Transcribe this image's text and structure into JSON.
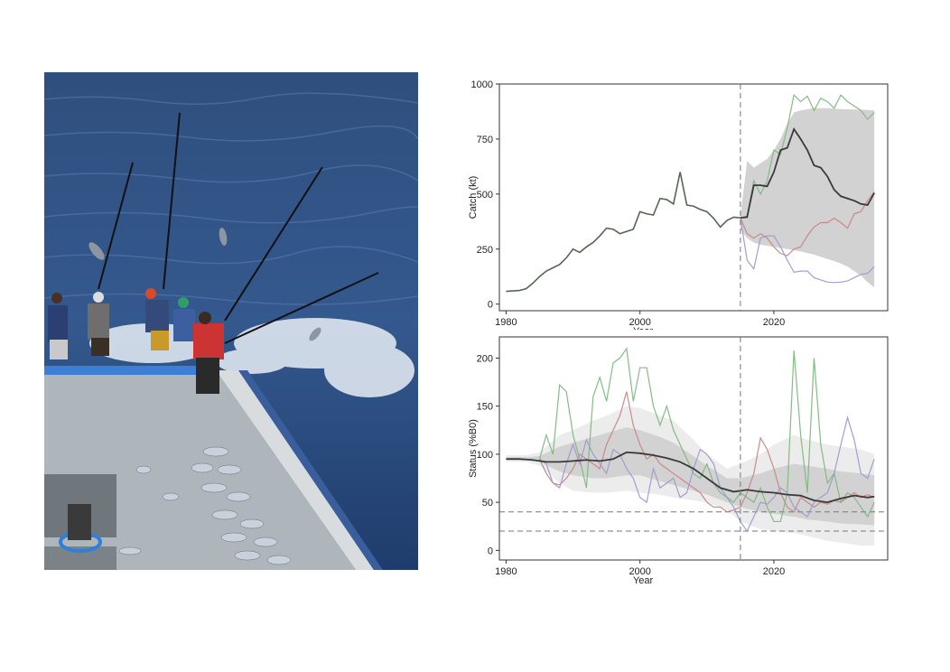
{
  "photo": {
    "description_icon": "pole-and-line-fishing-photo-icon"
  },
  "colors": {
    "median": "#3a3a3a",
    "green": "#7fb77f",
    "red": "#c98585",
    "blue": "#9b9bd0",
    "ribbon_outer": "#ececec",
    "ribbon_inner": "#d2d2d2",
    "vline": "#777777"
  },
  "chart_data": [
    {
      "type": "line",
      "xlabel": "Year",
      "ylabel": "Catch (kt)",
      "xlim": [
        1979,
        2037
      ],
      "ylim": [
        -30,
        1000
      ],
      "xticks": [
        1980,
        2000,
        2020
      ],
      "yticks": [
        0,
        250,
        500,
        750,
        1000
      ],
      "xtick_labels": [
        "1980",
        "2000",
        "2020"
      ],
      "ytick_labels": [
        "0",
        "250",
        "500",
        "750",
        "1000"
      ],
      "projection_start": 2015,
      "historical": {
        "x": [
          1980,
          1981,
          1982,
          1983,
          1984,
          1985,
          1986,
          1987,
          1988,
          1989,
          1990,
          1991,
          1992,
          1993,
          1994,
          1995,
          1996,
          1997,
          1998,
          1999,
          2000,
          2001,
          2002,
          2003,
          2004,
          2005,
          2006,
          2007,
          2008,
          2009,
          2010,
          2011,
          2012,
          2013,
          2014,
          2015
        ],
        "y": [
          58,
          60,
          62,
          70,
          95,
          125,
          150,
          165,
          180,
          210,
          250,
          235,
          260,
          280,
          310,
          345,
          340,
          320,
          330,
          340,
          420,
          410,
          405,
          480,
          475,
          455,
          600,
          450,
          445,
          430,
          420,
          390,
          350,
          380,
          395,
          392
        ]
      },
      "ribbon": {
        "x": [
          2015,
          2016,
          2017,
          2018,
          2019,
          2020,
          2021,
          2022,
          2023,
          2024,
          2025,
          2026,
          2027,
          2028,
          2029,
          2030,
          2031,
          2032,
          2033,
          2034,
          2035
        ],
        "lower": [
          340,
          300,
          280,
          270,
          265,
          260,
          255,
          250,
          245,
          240,
          232,
          225,
          215,
          205,
          195,
          185,
          170,
          150,
          130,
          100,
          75
        ],
        "upper": [
          400,
          650,
          620,
          640,
          660,
          700,
          750,
          820,
          870,
          880,
          885,
          890,
          890,
          890,
          888,
          886,
          885,
          884,
          883,
          882,
          880
        ]
      },
      "series": [
        {
          "name": "",
          "color_key": "median",
          "x": [
            2015,
            2016,
            2017,
            2018,
            2019,
            2020,
            2021,
            2022,
            2023,
            2024,
            2025,
            2026,
            2027,
            2028,
            2029,
            2030,
            2031,
            2032,
            2033,
            2034,
            2035
          ],
          "y": [
            392,
            395,
            540,
            540,
            535,
            600,
            700,
            710,
            795,
            750,
            700,
            630,
            620,
            580,
            520,
            490,
            480,
            470,
            455,
            450,
            505
          ]
        },
        {
          "name": "",
          "color_key": "green",
          "x": [
            2015,
            2016,
            2017,
            2018,
            2019,
            2020,
            2021,
            2022,
            2023,
            2024,
            2025,
            2026,
            2027,
            2028,
            2029,
            2030,
            2031,
            2032,
            2033,
            2034,
            2035
          ],
          "y": [
            392,
            400,
            560,
            500,
            560,
            700,
            680,
            800,
            950,
            920,
            945,
            880,
            935,
            920,
            890,
            950,
            920,
            900,
            880,
            840,
            870
          ]
        },
        {
          "name": "",
          "color_key": "red",
          "x": [
            2015,
            2016,
            2017,
            2018,
            2019,
            2020,
            2021,
            2022,
            2023,
            2024,
            2025,
            2026,
            2027,
            2028,
            2029,
            2030,
            2031,
            2032,
            2033,
            2034,
            2035
          ],
          "y": [
            392,
            320,
            300,
            320,
            300,
            260,
            230,
            220,
            250,
            260,
            310,
            350,
            370,
            370,
            390,
            370,
            345,
            410,
            420,
            470,
            510
          ]
        },
        {
          "name": "",
          "color_key": "blue",
          "x": [
            2015,
            2016,
            2017,
            2018,
            2019,
            2020,
            2021,
            2022,
            2023,
            2024,
            2025,
            2026,
            2027,
            2028,
            2029,
            2030,
            2031,
            2032,
            2033,
            2034,
            2035
          ],
          "y": [
            392,
            200,
            160,
            300,
            310,
            310,
            260,
            200,
            145,
            150,
            150,
            120,
            110,
            100,
            98,
            100,
            105,
            120,
            135,
            140,
            170
          ]
        }
      ]
    },
    {
      "type": "line",
      "xlabel": "Year",
      "ylabel": "Status (%B0)",
      "xlim": [
        1979,
        2037
      ],
      "ylim": [
        -10,
        222
      ],
      "xticks": [
        1980,
        2000,
        2020
      ],
      "yticks": [
        0,
        50,
        100,
        150,
        200
      ],
      "xtick_labels": [
        "1980",
        "2000",
        "2020"
      ],
      "ytick_labels": [
        "0",
        "50",
        "100",
        "150",
        "200"
      ],
      "projection_start": 2015,
      "hlines": [
        40,
        20
      ],
      "ribbon_outer": {
        "x": [
          1980,
          1983,
          1985,
          1988,
          1990,
          1993,
          1995,
          1998,
          2000,
          2003,
          2005,
          2008,
          2010,
          2013,
          2015,
          2018,
          2020,
          2023,
          2025,
          2028,
          2030,
          2033,
          2035
        ],
        "lower": [
          92,
          92,
          88,
          70,
          62,
          60,
          60,
          62,
          60,
          58,
          55,
          52,
          50,
          42,
          30,
          22,
          20,
          18,
          15,
          10,
          8,
          5,
          5
        ],
        "upper": [
          99,
          99,
          102,
          120,
          125,
          135,
          140,
          150,
          148,
          140,
          135,
          115,
          100,
          85,
          90,
          100,
          110,
          120,
          115,
          110,
          108,
          105,
          100
        ]
      },
      "ribbon_inner": {
        "x": [
          1980,
          1983,
          1985,
          1988,
          1990,
          1993,
          1995,
          1998,
          2000,
          2003,
          2005,
          2008,
          2010,
          2013,
          2015,
          2018,
          2020,
          2023,
          2025,
          2028,
          2030,
          2033,
          2035
        ],
        "lower": [
          94,
          94,
          92,
          82,
          78,
          75,
          75,
          78,
          78,
          72,
          68,
          62,
          58,
          50,
          45,
          40,
          38,
          35,
          32,
          30,
          28,
          27,
          26
        ],
        "upper": [
          97,
          97,
          98,
          108,
          112,
          118,
          122,
          128,
          125,
          118,
          112,
          98,
          88,
          75,
          75,
          80,
          85,
          90,
          88,
          85,
          82,
          80,
          78
        ]
      },
      "series": [
        {
          "name": "",
          "color_key": "median",
          "x": [
            1980,
            1982,
            1984,
            1986,
            1988,
            1990,
            1992,
            1994,
            1996,
            1998,
            2000,
            2002,
            2004,
            2006,
            2008,
            2010,
            2012,
            2014,
            2016,
            2018,
            2020,
            2022,
            2024,
            2026,
            2028,
            2030,
            2032,
            2034,
            2035
          ],
          "y": [
            95,
            95,
            94,
            92,
            92,
            93,
            94,
            93,
            95,
            102,
            101,
            99,
            96,
            92,
            85,
            75,
            65,
            61,
            63,
            61,
            60,
            58,
            57,
            52,
            50,
            54,
            57,
            55,
            56
          ]
        },
        {
          "name": "",
          "color_key": "green",
          "x": [
            1985,
            1986,
            1987,
            1988,
            1989,
            1990,
            1991,
            1992,
            1993,
            1994,
            1995,
            1996,
            1997,
            1998,
            1999,
            2000,
            2001,
            2002,
            2003,
            2004,
            2005,
            2006,
            2007,
            2008,
            2009,
            2010,
            2011,
            2012,
            2013,
            2014,
            2015,
            2016,
            2017,
            2018,
            2019,
            2020,
            2021,
            2022,
            2023,
            2024,
            2025,
            2026,
            2027,
            2028,
            2029,
            2030,
            2031,
            2032,
            2033,
            2034,
            2035
          ],
          "y": [
            95,
            120,
            100,
            172,
            165,
            120,
            95,
            65,
            160,
            180,
            155,
            195,
            200,
            210,
            155,
            190,
            190,
            150,
            130,
            150,
            125,
            110,
            95,
            80,
            75,
            90,
            70,
            60,
            55,
            50,
            60,
            55,
            50,
            65,
            45,
            30,
            30,
            60,
            208,
            120,
            60,
            200,
            110,
            70,
            80,
            50,
            60,
            55,
            45,
            35,
            50
          ]
        },
        {
          "name": "",
          "color_key": "red",
          "x": [
            1985,
            1986,
            1987,
            1988,
            1989,
            1990,
            1991,
            1992,
            1993,
            1994,
            1995,
            1996,
            1997,
            1998,
            1999,
            2000,
            2001,
            2002,
            2003,
            2004,
            2005,
            2006,
            2007,
            2008,
            2009,
            2010,
            2011,
            2012,
            2013,
            2014,
            2015,
            2016,
            2017,
            2018,
            2019,
            2020,
            2021,
            2022,
            2023,
            2024,
            2025,
            2026,
            2027,
            2028,
            2029,
            2030,
            2031,
            2032,
            2033,
            2034,
            2035
          ],
          "y": [
            95,
            80,
            70,
            68,
            75,
            85,
            100,
            95,
            90,
            85,
            110,
            125,
            140,
            165,
            130,
            110,
            95,
            100,
            90,
            85,
            80,
            75,
            70,
            65,
            60,
            50,
            45,
            45,
            40,
            42,
            45,
            60,
            80,
            117,
            105,
            85,
            60,
            45,
            40,
            55,
            50,
            45,
            50,
            48,
            52,
            50,
            55,
            60,
            55,
            58,
            55
          ]
        },
        {
          "name": "",
          "color_key": "blue",
          "x": [
            1985,
            1986,
            1987,
            1988,
            1989,
            1990,
            1991,
            1992,
            1993,
            1994,
            1995,
            1996,
            1997,
            1998,
            1999,
            2000,
            2001,
            2002,
            2003,
            2004,
            2005,
            2006,
            2007,
            2008,
            2009,
            2010,
            2011,
            2012,
            2013,
            2014,
            2015,
            2016,
            2017,
            2018,
            2019,
            2020,
            2021,
            2022,
            2023,
            2024,
            2025,
            2026,
            2027,
            2028,
            2029,
            2030,
            2031,
            2032,
            2033,
            2034,
            2035
          ],
          "y": [
            95,
            90,
            70,
            65,
            90,
            110,
            90,
            115,
            100,
            90,
            80,
            105,
            100,
            85,
            75,
            55,
            50,
            85,
            65,
            70,
            75,
            55,
            60,
            85,
            105,
            100,
            90,
            65,
            55,
            45,
            30,
            20,
            35,
            50,
            48,
            55,
            65,
            60,
            45,
            40,
            35,
            50,
            55,
            60,
            80,
            110,
            138,
            115,
            80,
            75,
            95
          ]
        }
      ]
    }
  ]
}
